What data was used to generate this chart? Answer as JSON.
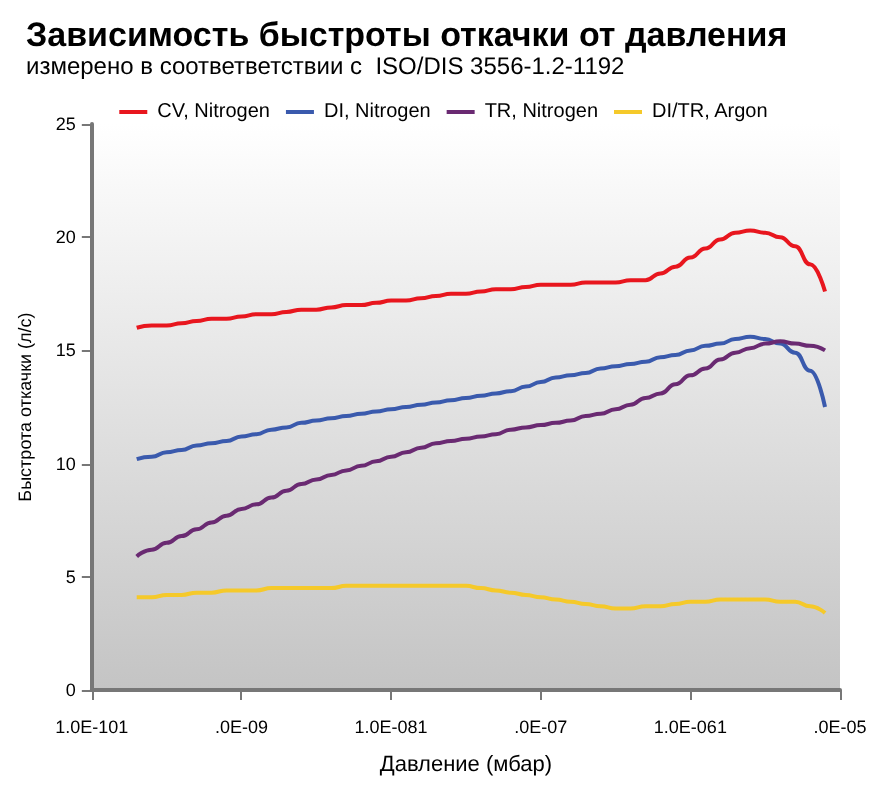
{
  "chart_data": {
    "type": "line",
    "title": "Зависимость быстроты откачки от давления",
    "subtitle": "измерено в соответветствии с  ISO/DIS 3556-1.2-1192",
    "xlabel": "Давление (мбар)",
    "ylabel": "Быстрота откачки (л/с)",
    "categories": [
      "1.0E-101",
      null,
      null,
      null,
      null,
      null,
      null,
      null,
      null,
      null,
      ".0E-09",
      null,
      null,
      null,
      null,
      null,
      null,
      null,
      null,
      null,
      "1.0E-081",
      null,
      null,
      null,
      null,
      null,
      null,
      null,
      null,
      null,
      ".0E-07",
      null,
      null,
      null,
      null,
      null,
      null,
      null,
      null,
      null,
      "1.0E-061",
      null,
      null,
      null,
      null,
      null,
      null,
      null,
      null,
      null,
      ".0E-05"
    ],
    "ylim": [
      0,
      25
    ],
    "yticks": [
      0,
      5,
      10,
      15,
      20,
      25
    ],
    "grid": false,
    "legend": "top",
    "marker": "none",
    "line_style": "solid",
    "series": [
      {
        "name": "CV, Nitrogen",
        "color": "#e8161e",
        "values": [
          null,
          null,
          null,
          16.0,
          16.1,
          16.1,
          16.2,
          16.3,
          16.4,
          16.4,
          16.5,
          16.6,
          16.6,
          16.7,
          16.8,
          16.8,
          16.9,
          17.0,
          17.0,
          17.1,
          17.2,
          17.2,
          17.3,
          17.4,
          17.5,
          17.5,
          17.6,
          17.7,
          17.7,
          17.8,
          17.9,
          17.9,
          17.9,
          18.0,
          18.0,
          18.0,
          18.1,
          18.1,
          18.4,
          18.7,
          19.1,
          19.5,
          19.9,
          20.2,
          20.3,
          20.2,
          20.0,
          19.6,
          18.8,
          17.6,
          null
        ]
      },
      {
        "name": "DI, Nitrogen",
        "color": "#3a5aad",
        "values": [
          null,
          null,
          null,
          10.2,
          10.3,
          10.5,
          10.6,
          10.8,
          10.9,
          11.0,
          11.2,
          11.3,
          11.5,
          11.6,
          11.8,
          11.9,
          12.0,
          12.1,
          12.2,
          12.3,
          12.4,
          12.5,
          12.6,
          12.7,
          12.8,
          12.9,
          13.0,
          13.1,
          13.2,
          13.4,
          13.6,
          13.8,
          13.9,
          14.0,
          14.2,
          14.3,
          14.4,
          14.5,
          14.7,
          14.8,
          15.0,
          15.2,
          15.3,
          15.5,
          15.6,
          15.5,
          15.3,
          14.9,
          14.1,
          12.5,
          null
        ]
      },
      {
        "name": "TR, Nitrogen",
        "color": "#6a2a72",
        "values": [
          null,
          null,
          null,
          5.9,
          6.2,
          6.5,
          6.8,
          7.1,
          7.4,
          7.7,
          8.0,
          8.2,
          8.5,
          8.8,
          9.1,
          9.3,
          9.5,
          9.7,
          9.9,
          10.1,
          10.3,
          10.5,
          10.7,
          10.9,
          11.0,
          11.1,
          11.2,
          11.3,
          11.5,
          11.6,
          11.7,
          11.8,
          11.9,
          12.1,
          12.2,
          12.4,
          12.6,
          12.9,
          13.1,
          13.5,
          13.9,
          14.2,
          14.6,
          14.9,
          15.1,
          15.3,
          15.4,
          15.3,
          15.2,
          15.0,
          null
        ]
      },
      {
        "name": "DI/TR, Argon",
        "color": "#f5c92a",
        "values": [
          null,
          null,
          null,
          4.1,
          4.1,
          4.2,
          4.2,
          4.3,
          4.3,
          4.4,
          4.4,
          4.4,
          4.5,
          4.5,
          4.5,
          4.5,
          4.5,
          4.6,
          4.6,
          4.6,
          4.6,
          4.6,
          4.6,
          4.6,
          4.6,
          4.6,
          4.5,
          4.4,
          4.3,
          4.2,
          4.1,
          4.0,
          3.9,
          3.8,
          3.7,
          3.6,
          3.6,
          3.7,
          3.7,
          3.8,
          3.9,
          3.9,
          4.0,
          4.0,
          4.0,
          4.0,
          3.9,
          3.9,
          3.7,
          3.4,
          null
        ]
      }
    ]
  }
}
